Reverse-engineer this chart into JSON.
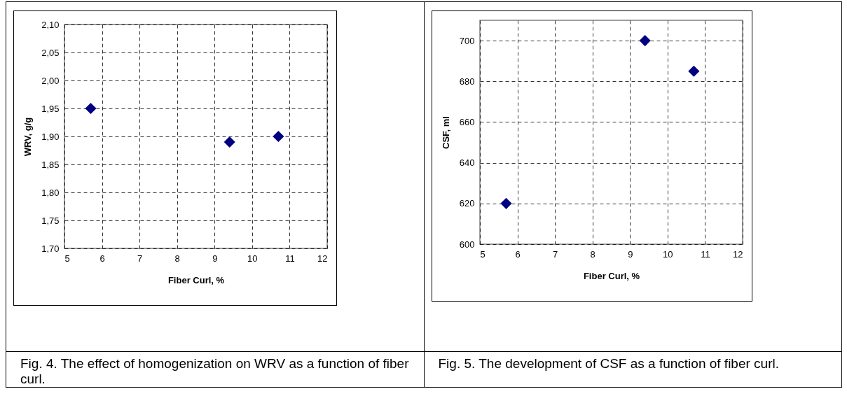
{
  "chart_data": [
    {
      "type": "scatter",
      "xlabel": "Fiber Curl, %",
      "ylabel": "WRV, g/g",
      "x": [
        5.7,
        9.4,
        10.7
      ],
      "series": [
        {
          "color": "#000080",
          "values": [
            1.95,
            1.89,
            1.9
          ]
        }
      ],
      "xlim": [
        5,
        12
      ],
      "xticks": [
        5,
        6,
        7,
        8,
        9,
        10,
        11,
        12
      ],
      "ylim": [
        1.7,
        2.1
      ],
      "yticks": [
        {
          "value": 1.7,
          "label": "1,70"
        },
        {
          "value": 1.75,
          "label": "1,75"
        },
        {
          "value": 1.8,
          "label": "1,80"
        },
        {
          "value": 1.85,
          "label": "1,85"
        },
        {
          "value": 1.9,
          "label": "1,90"
        },
        {
          "value": 1.95,
          "label": "1,95"
        },
        {
          "value": 2.0,
          "label": "2,00"
        },
        {
          "value": 2.05,
          "label": "2,05"
        },
        {
          "value": 2.1,
          "label": "2,10"
        }
      ],
      "grid": true,
      "marker": "diamond",
      "legend": false,
      "annotations": [
        "Fig. 4. The effect of homogenization on WRV as a function of fiber curl."
      ]
    },
    {
      "type": "scatter",
      "xlabel": "Fiber Curl, %",
      "ylabel": "CSF, ml",
      "x": [
        5.7,
        9.4,
        10.7
      ],
      "series": [
        {
          "color": "#000080",
          "values": [
            620,
            700,
            685
          ]
        }
      ],
      "xlim": [
        5,
        12
      ],
      "xticks": [
        5,
        6,
        7,
        8,
        9,
        10,
        11,
        12
      ],
      "ylim": [
        600,
        710
      ],
      "yticks": [
        600,
        620,
        640,
        660,
        680,
        700
      ],
      "grid": true,
      "marker": "diamond",
      "legend": false,
      "annotations": [
        "Fig. 5. The development of CSF as a function of fiber curl."
      ]
    }
  ]
}
